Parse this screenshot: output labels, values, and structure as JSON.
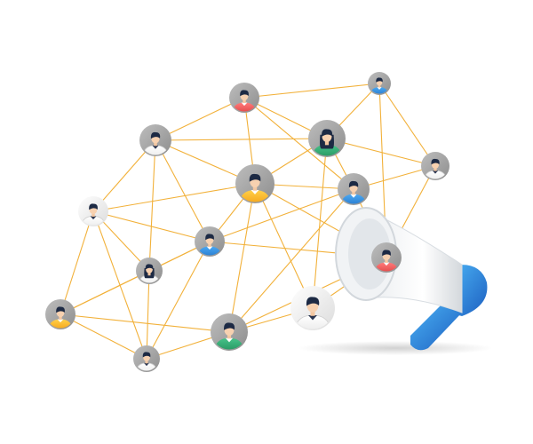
{
  "scene": {
    "background": "#ffffff",
    "line_color": "#f2b13a",
    "icon": "megaphone-icon"
  },
  "avatar_color_roles": {
    "red": "#ee5a5a",
    "blue": "#2f86d9",
    "green": "#2fa36b",
    "yellow": "#f7b21c",
    "white": "#ffffff"
  },
  "avatars": [
    {
      "name": "avatar-top-center",
      "shirt": "red",
      "hair": "short"
    },
    {
      "name": "avatar-top-right",
      "shirt": "blue",
      "hair": "short"
    },
    {
      "name": "avatar-upper-left",
      "shirt": "white",
      "hair": "short"
    },
    {
      "name": "avatar-upper-center-woman",
      "shirt": "green",
      "hair": "long"
    },
    {
      "name": "avatar-right-edge",
      "shirt": "white",
      "hair": "short"
    },
    {
      "name": "avatar-center-large",
      "shirt": "yellow",
      "hair": "short"
    },
    {
      "name": "avatar-right-blue",
      "shirt": "blue",
      "hair": "short"
    },
    {
      "name": "avatar-left-small",
      "shirt": "white",
      "hair": "short"
    },
    {
      "name": "avatar-middle-blue",
      "shirt": "blue",
      "hair": "short"
    },
    {
      "name": "avatar-megaphone-red",
      "shirt": "red",
      "hair": "short"
    },
    {
      "name": "avatar-lower-left-woman",
      "shirt": "white",
      "hair": "long"
    },
    {
      "name": "avatar-lower-right-large",
      "shirt": "white",
      "hair": "short"
    },
    {
      "name": "avatar-far-left-yellow",
      "shirt": "yellow",
      "hair": "short"
    },
    {
      "name": "avatar-bottom-green",
      "shirt": "green",
      "hair": "short"
    },
    {
      "name": "avatar-bottom-left",
      "shirt": "white",
      "hair": "short"
    }
  ],
  "connections": [
    [
      0,
      1
    ],
    [
      0,
      2
    ],
    [
      0,
      3
    ],
    [
      0,
      5
    ],
    [
      0,
      6
    ],
    [
      1,
      3
    ],
    [
      1,
      4
    ],
    [
      1,
      9
    ],
    [
      2,
      3
    ],
    [
      2,
      5
    ],
    [
      2,
      7
    ],
    [
      2,
      8
    ],
    [
      2,
      10
    ],
    [
      3,
      4
    ],
    [
      3,
      5
    ],
    [
      3,
      6
    ],
    [
      3,
      11
    ],
    [
      4,
      6
    ],
    [
      4,
      9
    ],
    [
      5,
      6
    ],
    [
      5,
      7
    ],
    [
      5,
      8
    ],
    [
      5,
      9
    ],
    [
      5,
      11
    ],
    [
      5,
      13
    ],
    [
      6,
      8
    ],
    [
      6,
      9
    ],
    [
      6,
      13
    ],
    [
      7,
      8
    ],
    [
      7,
      10
    ],
    [
      7,
      12
    ],
    [
      7,
      14
    ],
    [
      8,
      9
    ],
    [
      8,
      10
    ],
    [
      8,
      12
    ],
    [
      8,
      14
    ],
    [
      9,
      11
    ],
    [
      9,
      13
    ],
    [
      10,
      12
    ],
    [
      10,
      14
    ],
    [
      11,
      13
    ],
    [
      12,
      13
    ],
    [
      12,
      14
    ],
    [
      13,
      14
    ]
  ]
}
